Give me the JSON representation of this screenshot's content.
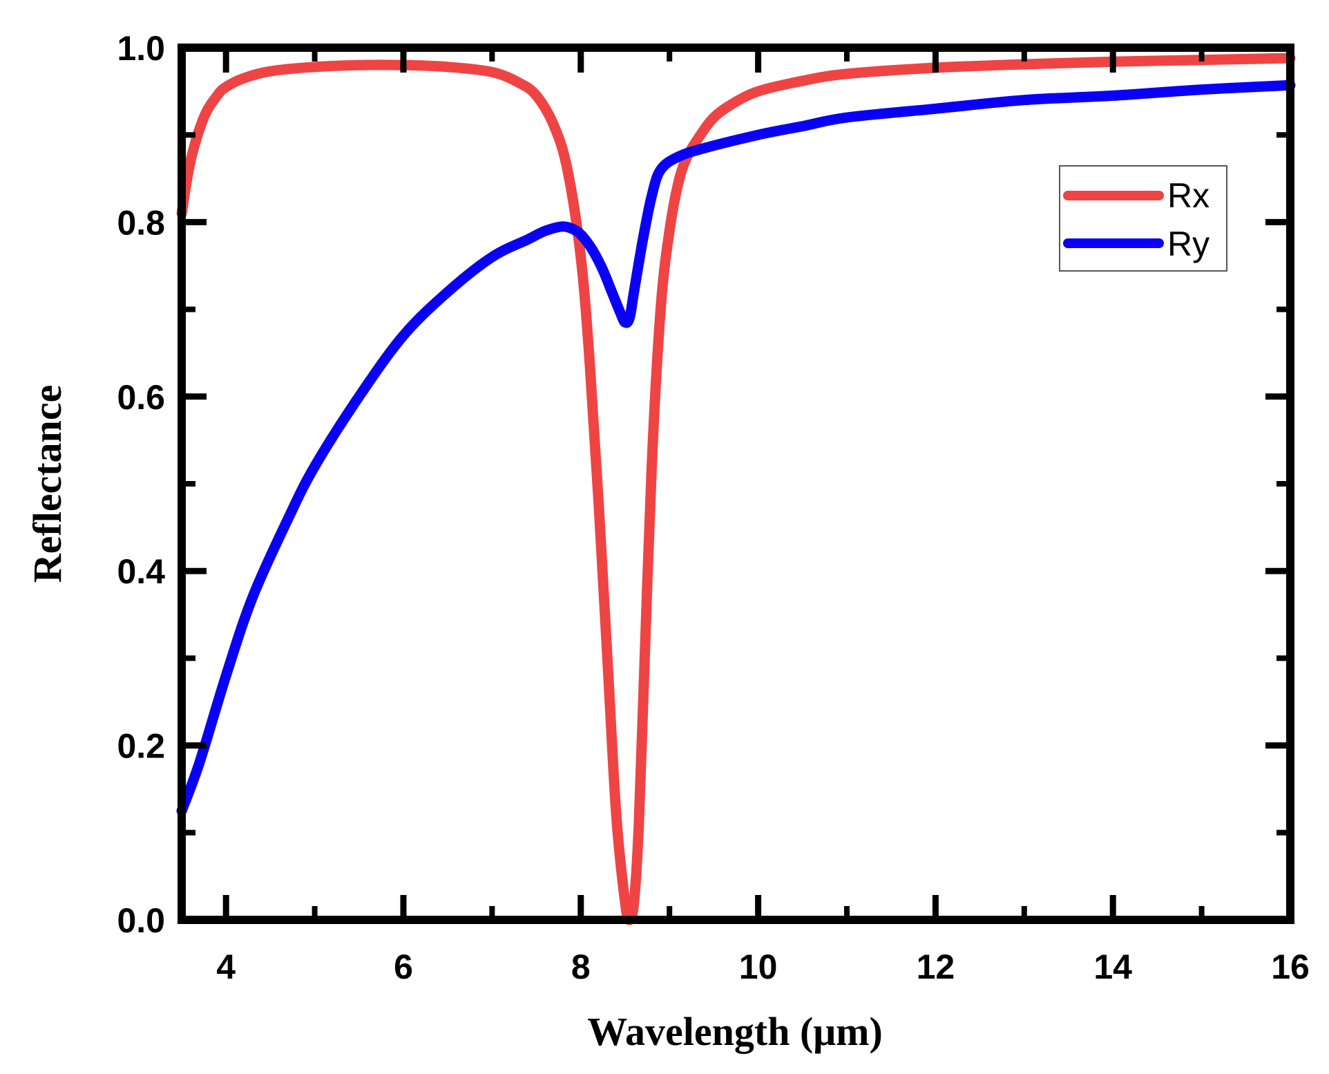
{
  "chart_data": {
    "type": "line",
    "title": "",
    "xlabel": "Wavelength (μm)",
    "ylabel": "Reflectance",
    "xlim": [
      3.5,
      16
    ],
    "ylim": [
      0.0,
      1.0
    ],
    "x_ticks": [
      4,
      6,
      8,
      10,
      12,
      14,
      16
    ],
    "x_tick_labels": [
      "4",
      "6",
      "8",
      "10",
      "12",
      "14",
      "16"
    ],
    "y_ticks": [
      0.0,
      0.2,
      0.4,
      0.6,
      0.8,
      1.0
    ],
    "y_tick_labels": [
      "0.0",
      "0.2",
      "0.4",
      "0.6",
      "0.8",
      "1.0"
    ],
    "grid": false,
    "legend_position": "top-right",
    "series": [
      {
        "name": "Rx",
        "color": "#ef4444",
        "x": [
          3.5,
          3.6,
          3.75,
          3.9,
          4.0,
          4.2,
          4.5,
          5.0,
          5.5,
          6.0,
          6.5,
          7.0,
          7.3,
          7.5,
          7.7,
          7.85,
          8.0,
          8.1,
          8.2,
          8.3,
          8.4,
          8.5,
          8.55,
          8.6,
          8.65,
          8.7,
          8.8,
          8.9,
          9.0,
          9.1,
          9.2,
          9.35,
          9.5,
          9.7,
          10.0,
          10.5,
          11.0,
          12.0,
          13.0,
          14.0,
          15.0,
          16.0
        ],
        "y": [
          0.81,
          0.87,
          0.92,
          0.945,
          0.955,
          0.965,
          0.973,
          0.978,
          0.98,
          0.98,
          0.978,
          0.972,
          0.96,
          0.945,
          0.91,
          0.86,
          0.76,
          0.64,
          0.48,
          0.3,
          0.12,
          0.02,
          0.0,
          0.02,
          0.1,
          0.24,
          0.52,
          0.7,
          0.79,
          0.845,
          0.875,
          0.9,
          0.92,
          0.935,
          0.95,
          0.962,
          0.97,
          0.977,
          0.981,
          0.984,
          0.986,
          0.988
        ]
      },
      {
        "name": "Ry",
        "color": "#0a00f5",
        "x": [
          3.5,
          3.7,
          4.0,
          4.3,
          4.7,
          5.0,
          5.5,
          6.0,
          6.5,
          7.0,
          7.4,
          7.6,
          7.8,
          7.95,
          8.05,
          8.15,
          8.25,
          8.35,
          8.45,
          8.5,
          8.55,
          8.6,
          8.7,
          8.8,
          8.9,
          9.1,
          9.4,
          10.0,
          10.5,
          11.0,
          12.0,
          13.0,
          14.0,
          15.0,
          16.0
        ],
        "y": [
          0.125,
          0.18,
          0.28,
          0.37,
          0.46,
          0.52,
          0.6,
          0.67,
          0.72,
          0.76,
          0.78,
          0.79,
          0.795,
          0.79,
          0.78,
          0.765,
          0.745,
          0.72,
          0.695,
          0.685,
          0.69,
          0.72,
          0.78,
          0.83,
          0.86,
          0.875,
          0.885,
          0.9,
          0.91,
          0.92,
          0.93,
          0.94,
          0.945,
          0.952,
          0.957
        ]
      }
    ]
  }
}
